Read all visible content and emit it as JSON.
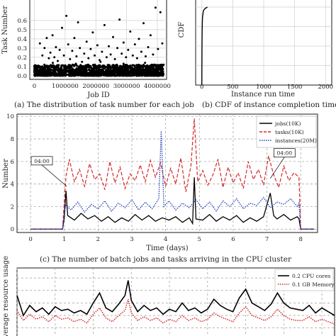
{
  "chart_data": [
    {
      "panel": "a",
      "type": "scatter",
      "caption": "(a) The distribution of task number for each job",
      "xlabel": "Job ID",
      "ylabel": "Task Number",
      "xticks": [
        "0",
        "1000000",
        "2000000",
        "3000000",
        "4000000"
      ],
      "yticks": [
        "0.0",
        "0.1",
        "0.2",
        "0.3",
        "0.4",
        "0.5",
        "0.6"
      ],
      "xlim": [
        -150000,
        4300000
      ],
      "ylim": [
        -0.04,
        0.83
      ],
      "grid": true,
      "dense_band": {
        "y_range": [
          0.0,
          0.12
        ],
        "x_range": [
          0,
          4200000
        ]
      },
      "points": [
        [
          180000,
          0.35
        ],
        [
          260000,
          0.22
        ],
        [
          330000,
          0.3
        ],
        [
          400000,
          0.41
        ],
        [
          470000,
          0.19
        ],
        [
          520000,
          0.25
        ],
        [
          590000,
          0.44
        ],
        [
          650000,
          0.2
        ],
        [
          700000,
          0.31
        ],
        [
          760000,
          0.16
        ],
        [
          820000,
          0.28
        ],
        [
          900000,
          0.52
        ],
        [
          960000,
          0.22
        ],
        [
          1040000,
          0.65
        ],
        [
          1100000,
          0.34
        ],
        [
          1160000,
          0.18
        ],
        [
          1230000,
          0.27
        ],
        [
          1300000,
          0.41
        ],
        [
          1370000,
          0.21
        ],
        [
          1420000,
          0.58
        ],
        [
          1480000,
          0.3
        ],
        [
          1550000,
          0.15
        ],
        [
          1620000,
          0.24
        ],
        [
          1700000,
          0.37
        ],
        [
          1760000,
          0.19
        ],
        [
          1830000,
          0.29
        ],
        [
          1900000,
          0.47
        ],
        [
          1960000,
          0.22
        ],
        [
          2050000,
          0.33
        ],
        [
          2120000,
          0.17
        ],
        [
          2200000,
          0.26
        ],
        [
          2280000,
          0.55
        ],
        [
          2350000,
          0.2
        ],
        [
          2420000,
          0.32
        ],
        [
          2480000,
          0.23
        ],
        [
          2560000,
          0.42
        ],
        [
          2620000,
          0.18
        ],
        [
          2700000,
          0.3
        ],
        [
          2770000,
          0.61
        ],
        [
          2840000,
          0.24
        ],
        [
          2900000,
          0.36
        ],
        [
          2980000,
          0.2
        ],
        [
          3050000,
          0.28
        ],
        [
          3120000,
          0.48
        ],
        [
          3200000,
          0.22
        ],
        [
          3270000,
          0.34
        ],
        [
          3340000,
          0.19
        ],
        [
          3400000,
          0.4
        ],
        [
          3480000,
          0.26
        ],
        [
          3550000,
          0.57
        ],
        [
          3620000,
          0.21
        ],
        [
          3700000,
          0.31
        ],
        [
          3780000,
          0.44
        ],
        [
          3860000,
          0.23
        ],
        [
          3940000,
          0.74
        ],
        [
          4020000,
          0.29
        ],
        [
          4100000,
          0.69
        ],
        [
          4160000,
          0.35
        ],
        [
          600000,
          0.14
        ],
        [
          1350000,
          0.13
        ],
        [
          2150000,
          0.15
        ],
        [
          2900000,
          0.13
        ],
        [
          3600000,
          0.14
        ]
      ]
    },
    {
      "panel": "b",
      "type": "line",
      "caption": "(b) CDF of instance completion time",
      "xlabel": "Instance run time",
      "ylabel": "CDF",
      "xticks": [
        "0",
        "500",
        "1000",
        "1500",
        "2000"
      ],
      "xlim": [
        -100,
        2100
      ],
      "ylim": [
        0,
        1.1
      ],
      "grid": true,
      "series": [
        {
          "x": [
            0,
            2,
            5,
            10,
            20,
            30,
            50,
            70,
            90
          ],
          "y": [
            0.0,
            0.45,
            0.72,
            0.86,
            0.93,
            0.96,
            0.98,
            0.99,
            1.0
          ]
        }
      ]
    },
    {
      "panel": "c",
      "type": "line",
      "caption": "(c) The number of batch jobs and tasks arriving in the CPU cluster",
      "xlabel": "Time (days)",
      "ylabel": "Number",
      "xticks": [
        "0",
        "1",
        "2",
        "3",
        "4",
        "5",
        "6",
        "7",
        "8"
      ],
      "yticks": [
        "0",
        "2",
        "4",
        "6",
        "8",
        "10"
      ],
      "xlim": [
        -0.4,
        8.5
      ],
      "ylim": [
        -0.3,
        10.2
      ],
      "grid": true,
      "legend_position": "top-right",
      "annotations": [
        {
          "text": "04:00",
          "x": 1.07,
          "y": 3.8
        },
        {
          "text": "04:00",
          "x": 7.1,
          "y": 4.5
        }
      ],
      "series": [
        {
          "name": "jobs(10K)",
          "color": "#000000",
          "style": "solid",
          "x": [
            0,
            0.95,
            1.0,
            1.05,
            1.1,
            1.3,
            1.5,
            1.7,
            1.9,
            2.1,
            2.3,
            2.5,
            2.7,
            2.9,
            3.1,
            3.3,
            3.5,
            3.7,
            3.9,
            4.1,
            4.3,
            4.5,
            4.7,
            4.8,
            4.85,
            4.9,
            5.1,
            5.3,
            5.5,
            5.7,
            5.9,
            6.1,
            6.3,
            6.5,
            6.7,
            6.9,
            7.1,
            7.2,
            7.3,
            7.5,
            7.7,
            7.9,
            7.95,
            8.0,
            8.4
          ],
          "y": [
            0,
            0,
            1.0,
            3.4,
            1.2,
            0.8,
            1.4,
            0.9,
            1.2,
            0.7,
            1.1,
            0.6,
            1.0,
            0.7,
            1.3,
            0.8,
            1.2,
            0.7,
            1.0,
            0.8,
            1.1,
            0.6,
            1.0,
            0.5,
            4.6,
            0.9,
            0.8,
            1.3,
            0.7,
            1.1,
            0.8,
            1.2,
            0.6,
            1.0,
            0.7,
            1.1,
            3.2,
            1.2,
            0.9,
            1.3,
            0.8,
            1.1,
            0.9,
            0,
            0
          ]
        },
        {
          "name": "tasks(10K)",
          "color": "#d62728",
          "style": "dashed",
          "x": [
            0,
            0.95,
            1.0,
            1.05,
            1.15,
            1.3,
            1.45,
            1.6,
            1.75,
            1.9,
            2.05,
            2.2,
            2.35,
            2.5,
            2.65,
            2.8,
            2.95,
            3.1,
            3.25,
            3.4,
            3.55,
            3.7,
            3.85,
            4.0,
            4.15,
            4.3,
            4.45,
            4.6,
            4.75,
            4.85,
            4.95,
            5.1,
            5.25,
            5.4,
            5.55,
            5.7,
            5.85,
            6.0,
            6.15,
            6.3,
            6.45,
            6.6,
            6.75,
            6.9,
            7.05,
            7.2,
            7.35,
            7.5,
            7.65,
            7.8,
            7.95,
            8.0,
            8.4
          ],
          "y": [
            0,
            0,
            2.5,
            4.7,
            6.2,
            4.2,
            5.3,
            3.8,
            5.8,
            4.4,
            4.9,
            3.5,
            6.0,
            4.1,
            5.5,
            3.6,
            4.9,
            4.3,
            5.7,
            4.2,
            6.1,
            4.6,
            5.9,
            3.8,
            5.4,
            4.0,
            6.3,
            3.3,
            5.6,
            9.8,
            4.2,
            5.2,
            3.9,
            4.8,
            6.2,
            3.7,
            5.5,
            4.1,
            5.0,
            3.6,
            6.0,
            4.4,
            5.3,
            3.9,
            6.5,
            4.8,
            3.7,
            5.6,
            4.3,
            5.0,
            4.6,
            0,
            0
          ]
        },
        {
          "name": "instances(20M)",
          "color": "#1f3fbf",
          "style": "dotted",
          "x": [
            0,
            0.95,
            1.0,
            1.05,
            1.2,
            1.4,
            1.6,
            1.8,
            2.0,
            2.2,
            2.4,
            2.6,
            2.8,
            3.0,
            3.2,
            3.4,
            3.6,
            3.8,
            3.87,
            3.95,
            4.1,
            4.3,
            4.5,
            4.7,
            4.9,
            5.1,
            5.3,
            5.5,
            5.7,
            5.9,
            6.1,
            6.3,
            6.5,
            6.7,
            6.9,
            7.1,
            7.3,
            7.5,
            7.7,
            7.9,
            7.95,
            8.0,
            8.4
          ],
          "y": [
            0,
            0,
            1.6,
            2.1,
            1.7,
            2.4,
            1.5,
            2.2,
            1.8,
            2.5,
            1.6,
            2.3,
            1.9,
            2.6,
            1.7,
            2.4,
            1.8,
            2.7,
            8.7,
            2.0,
            2.5,
            1.7,
            2.3,
            1.9,
            2.6,
            1.8,
            2.4,
            1.6,
            2.5,
            2.0,
            2.7,
            1.8,
            2.3,
            2.1,
            2.8,
            1.9,
            2.4,
            2.2,
            2.7,
            2.0,
            2.3,
            0,
            0
          ]
        }
      ]
    },
    {
      "panel": "d",
      "type": "line",
      "ylabel": "Average resource usage",
      "xlim": [
        0,
        100
      ],
      "ylim": [
        2.3,
        7.8
      ],
      "grid": true,
      "legend_position": "top-right",
      "series": [
        {
          "name": "0.2 CPU cores",
          "color": "#000000",
          "style": "solid",
          "x": [
            0,
            2,
            4,
            6,
            8,
            10,
            12,
            14,
            16,
            18,
            20,
            22,
            24,
            26,
            28,
            30,
            32,
            34,
            35,
            36,
            38,
            40,
            42,
            44,
            46,
            48,
            50,
            52,
            54,
            56,
            58,
            60,
            62,
            64,
            66,
            68,
            70,
            72,
            74,
            76,
            78,
            80,
            82,
            84,
            86,
            88,
            90,
            92,
            94,
            96,
            98,
            100
          ],
          "y": [
            5.6,
            4.0,
            4.8,
            4.3,
            4.6,
            4.1,
            4.7,
            4.4,
            4.5,
            4.2,
            4.4,
            4.1,
            5.0,
            5.8,
            4.6,
            4.3,
            4.9,
            5.6,
            6.8,
            5.2,
            4.3,
            4.8,
            4.4,
            4.6,
            4.1,
            4.5,
            4.3,
            5.0,
            4.4,
            4.6,
            4.2,
            4.5,
            5.3,
            4.8,
            4.5,
            4.3,
            5.4,
            6.1,
            5.0,
            4.7,
            4.4,
            4.9,
            5.8,
            5.0,
            4.6,
            4.5,
            4.4,
            4.8,
            4.2,
            4.6,
            4.3,
            4.0
          ]
        },
        {
          "name": "0.1 GB Memory",
          "color": "#d62728",
          "style": "dotted",
          "x": [
            0,
            2,
            4,
            6,
            8,
            10,
            12,
            14,
            16,
            18,
            20,
            22,
            24,
            26,
            28,
            30,
            32,
            34,
            35,
            36,
            38,
            40,
            42,
            44,
            46,
            48,
            50,
            52,
            54,
            56,
            58,
            60,
            62,
            64,
            66,
            68,
            70,
            72,
            74,
            76,
            78,
            80,
            82,
            84,
            86,
            88,
            90,
            92,
            94,
            96,
            98,
            100
          ],
          "y": [
            4.4,
            3.6,
            4.1,
            3.7,
            3.9,
            3.5,
            4.0,
            3.7,
            3.8,
            3.5,
            3.7,
            3.4,
            4.1,
            4.6,
            3.8,
            3.5,
            4.0,
            4.4,
            5.3,
            4.2,
            3.6,
            3.9,
            3.6,
            3.8,
            3.4,
            3.7,
            3.5,
            4.0,
            3.6,
            3.8,
            3.5,
            3.7,
            4.2,
            3.9,
            3.7,
            3.5,
            4.2,
            4.7,
            4.0,
            3.8,
            3.6,
            3.9,
            4.5,
            4.0,
            3.7,
            3.6,
            3.6,
            3.9,
            3.5,
            3.7,
            3.5,
            3.3
          ]
        }
      ]
    }
  ]
}
